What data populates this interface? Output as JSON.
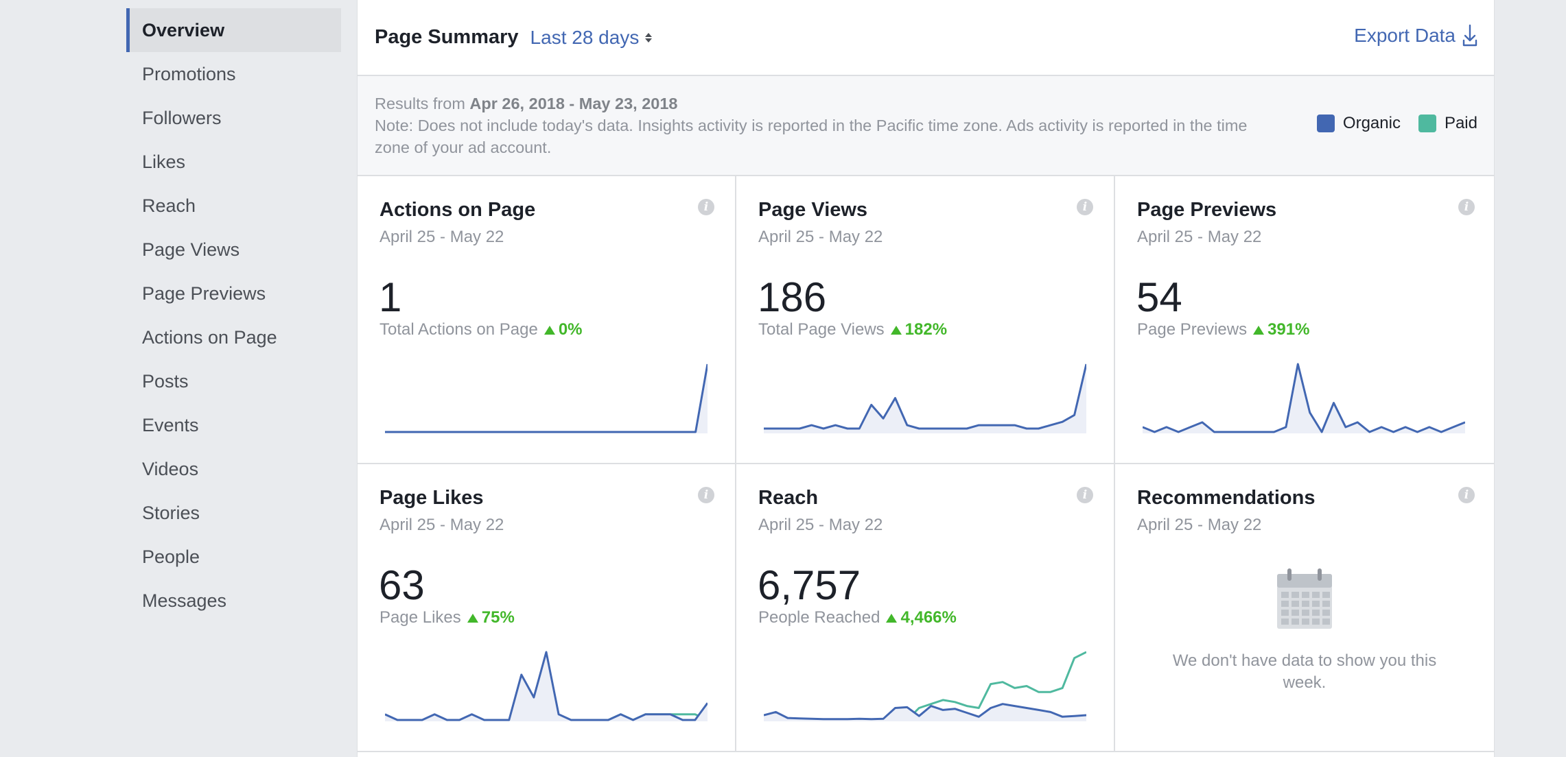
{
  "sidebar": {
    "items": [
      {
        "label": "Overview",
        "active": true
      },
      {
        "label": "Promotions"
      },
      {
        "label": "Followers"
      },
      {
        "label": "Likes"
      },
      {
        "label": "Reach"
      },
      {
        "label": "Page Views"
      },
      {
        "label": "Page Previews"
      },
      {
        "label": "Actions on Page"
      },
      {
        "label": "Posts"
      },
      {
        "label": "Events"
      },
      {
        "label": "Videos"
      },
      {
        "label": "Stories"
      },
      {
        "label": "People"
      },
      {
        "label": "Messages"
      }
    ]
  },
  "header": {
    "title": "Page Summary",
    "range": "Last 28 days",
    "export_label": "Export Data"
  },
  "results": {
    "prefix": "Results from ",
    "range": "Apr 26, 2018 - May 23, 2018",
    "note": "Note: Does not include today's data. Insights activity is reported in the Pacific time zone. Ads activity is reported in the time zone of your ad account."
  },
  "legend": [
    {
      "label": "Organic",
      "color": "#4267b2"
    },
    {
      "label": "Paid",
      "color": "#4fb99f"
    }
  ],
  "colors": {
    "organic": "#4267b2",
    "paid": "#4fb99f",
    "positive": "#42b72a"
  },
  "cards": [
    {
      "title": "Actions on Page",
      "date": "April 25 - May 22",
      "value": "1",
      "metric": "Total Actions on Page",
      "change": "0%",
      "organic": [
        0,
        0,
        0,
        0,
        0,
        0,
        0,
        0,
        0,
        0,
        0,
        0,
        0,
        0,
        0,
        0,
        0,
        0,
        0,
        0,
        0,
        0,
        0,
        0,
        0,
        0,
        0,
        1
      ]
    },
    {
      "title": "Page Views",
      "date": "April 25 - May 22",
      "value": "186",
      "metric": "Total Page Views",
      "change": "182%",
      "organic": [
        1,
        1,
        1,
        1,
        2,
        1,
        2,
        1,
        1,
        8,
        4,
        10,
        2,
        1,
        1,
        1,
        1,
        1,
        2,
        2,
        2,
        2,
        1,
        1,
        2,
        3,
        5,
        20
      ]
    },
    {
      "title": "Page Previews",
      "date": "April 25 - May 22",
      "value": "54",
      "metric": "Page Previews",
      "change": "391%",
      "organic": [
        1,
        0,
        1,
        0,
        1,
        2,
        0,
        0,
        0,
        0,
        0,
        0,
        1,
        14,
        4,
        0,
        6,
        1,
        2,
        0,
        1,
        0,
        1,
        0,
        1,
        0,
        1,
        2
      ]
    },
    {
      "title": "Page Likes",
      "date": "April 25 - May 22",
      "value": "63",
      "metric": "Page Likes",
      "change": "75%",
      "organic": [
        1,
        0,
        0,
        0,
        1,
        0,
        0,
        1,
        0,
        0,
        0,
        8,
        4,
        12,
        1,
        0,
        0,
        0,
        0,
        1,
        0,
        1,
        1,
        1,
        0,
        0,
        3
      ],
      "paid": [
        0,
        0,
        0,
        0,
        0,
        0,
        0,
        0,
        0,
        0,
        0,
        0,
        0,
        0,
        0,
        0,
        0,
        0,
        0,
        1,
        0,
        1,
        1,
        1,
        1,
        1,
        0
      ]
    },
    {
      "title": "Reach",
      "date": "April 25 - May 22",
      "value": "6,757",
      "metric": "People Reached",
      "change": "4,466%",
      "organic": [
        12,
        20,
        5,
        4,
        3,
        2,
        2,
        2,
        3,
        2,
        3,
        30,
        32,
        10,
        35,
        25,
        28,
        18,
        8,
        30,
        40,
        35,
        30,
        25,
        20,
        8,
        10,
        12
      ],
      "paid": [
        0,
        0,
        0,
        0,
        0,
        0,
        0,
        0,
        0,
        0,
        0,
        0,
        0,
        30,
        40,
        50,
        45,
        35,
        30,
        90,
        95,
        80,
        85,
        70,
        70,
        80,
        155,
        170
      ]
    },
    {
      "title": "Recommendations",
      "date": "April 25 - May 22",
      "empty_text": "We don't have data to show you this week."
    }
  ]
}
